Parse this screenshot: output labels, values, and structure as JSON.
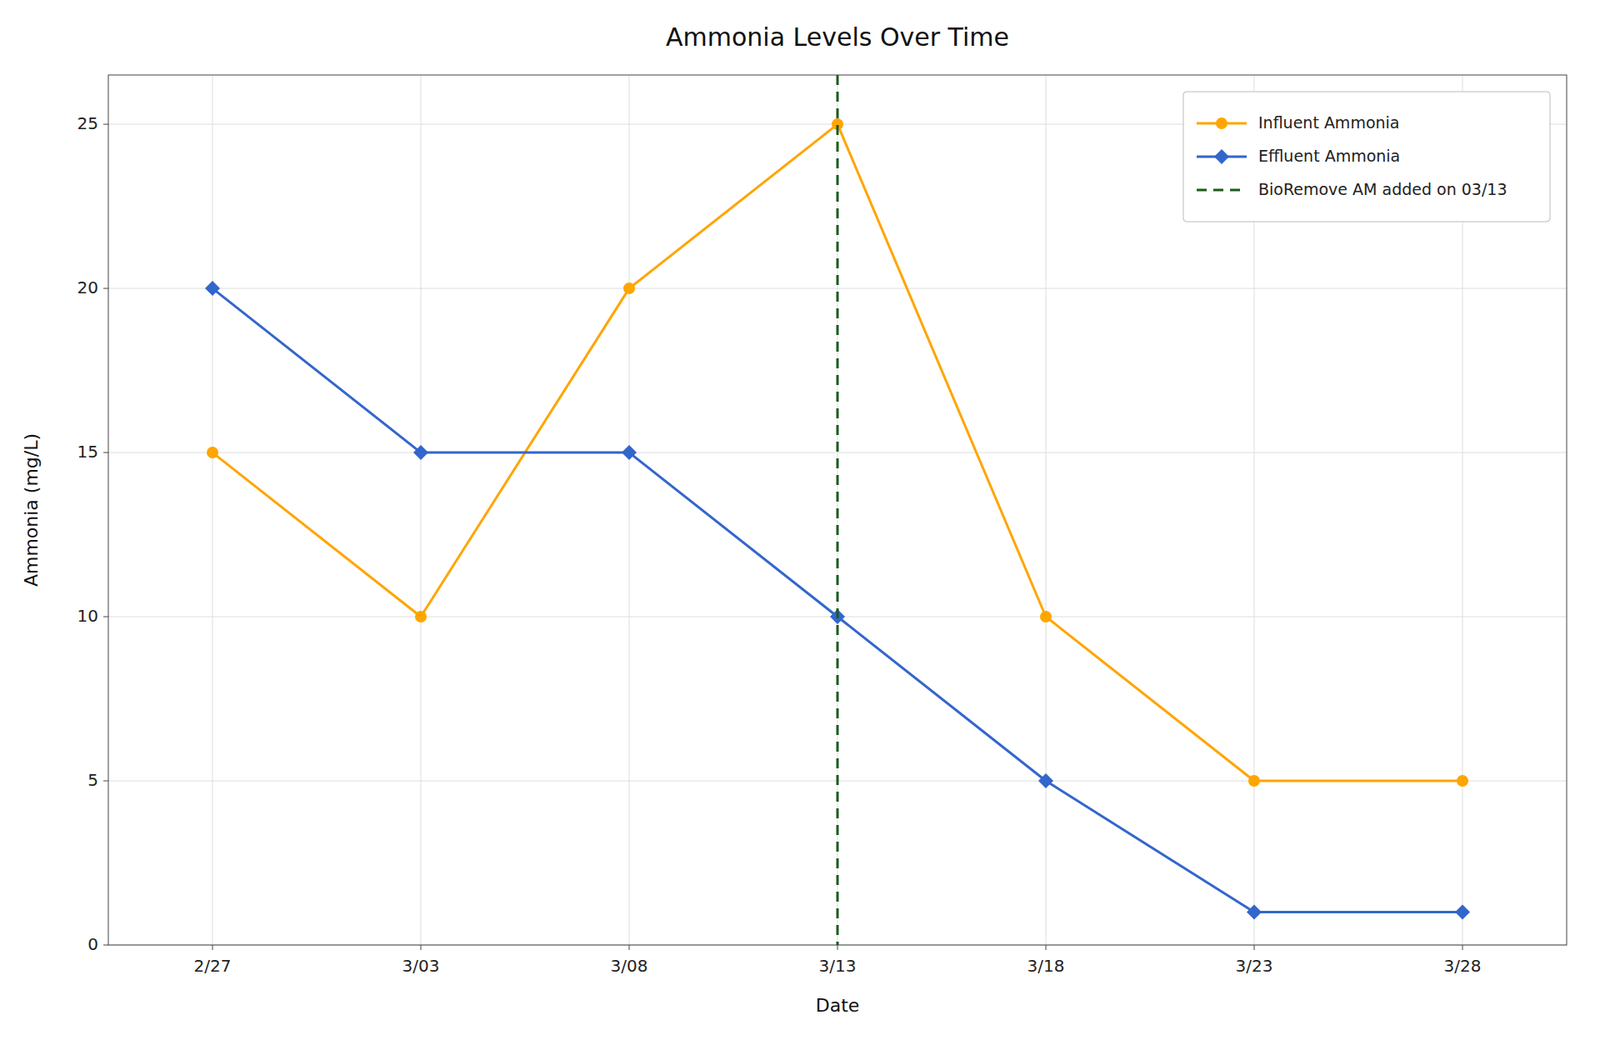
{
  "chart_data": {
    "type": "line",
    "title": "Ammonia Levels Over Time",
    "x_label": "Date",
    "y_label": "Ammonia (mg/L)",
    "categories": [
      "2/27",
      "3/03",
      "3/08",
      "3/13",
      "3/18",
      "3/23",
      "3/28"
    ],
    "series": [
      {
        "name": "Influent Ammonia",
        "color": "#FFA500",
        "marker": "circle",
        "values": [
          15,
          10,
          20,
          25,
          10,
          5,
          5
        ]
      },
      {
        "name": "Effluent Ammonia",
        "color": "#3366CC",
        "marker": "diamond",
        "values": [
          20,
          15,
          15,
          10,
          5,
          1,
          1
        ]
      }
    ],
    "vlines": [
      {
        "x": "3/13",
        "label": "BioRemove AM added on 03/13",
        "color": "#1A5C1A",
        "line_style": "dashed"
      }
    ],
    "ylim": [
      0,
      26.5
    ],
    "yticks": [
      0,
      5,
      10,
      15,
      20,
      25
    ],
    "grid": true,
    "legend": "upper-right"
  }
}
